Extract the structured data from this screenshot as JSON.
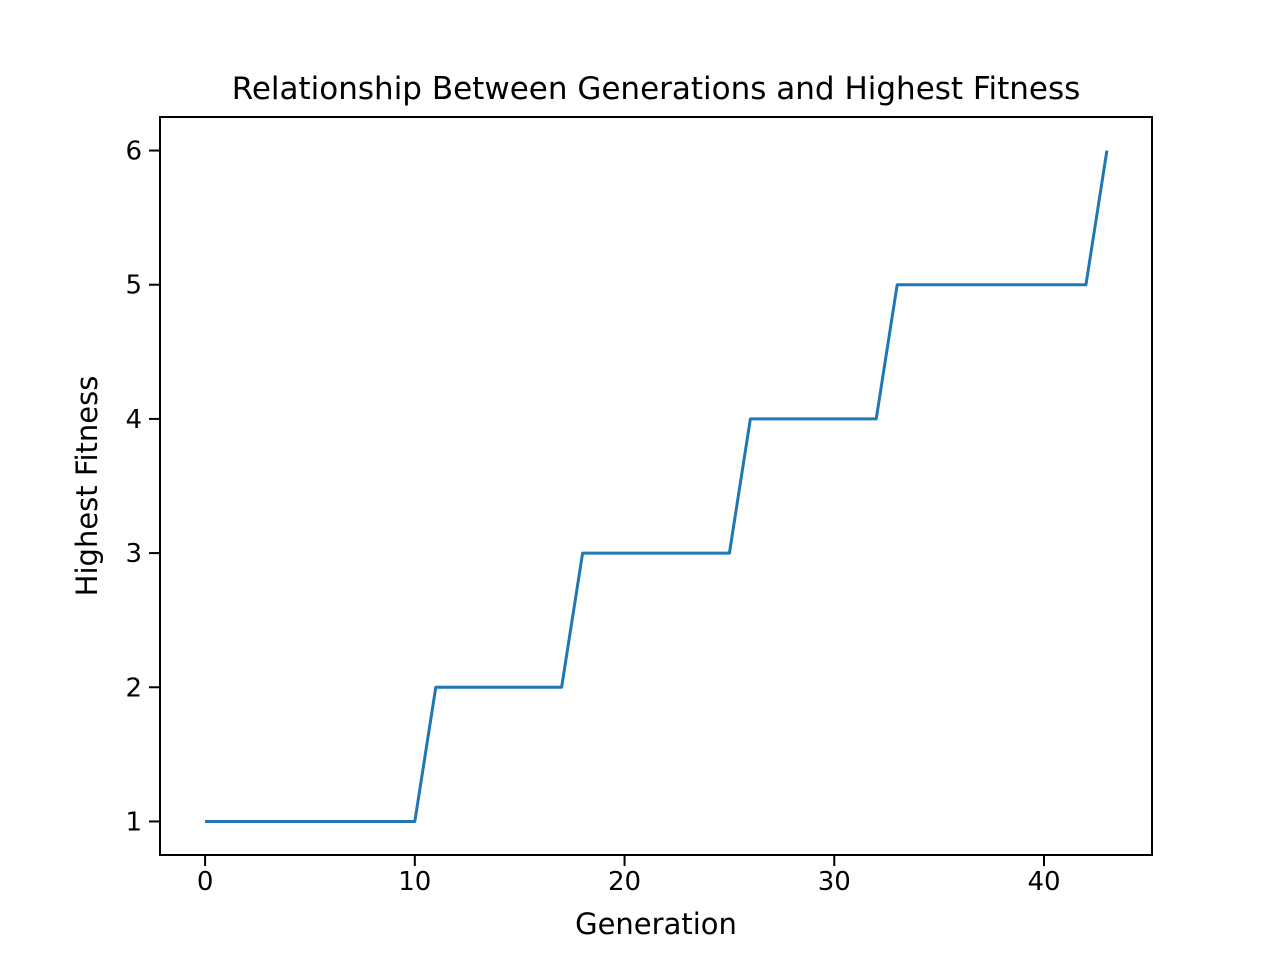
{
  "chart_data": {
    "type": "line",
    "title": "Relationship Between Generations and Highest Fitness",
    "xlabel": "Generation",
    "ylabel": "Highest Fitness",
    "x": [
      0,
      1,
      2,
      3,
      4,
      5,
      6,
      7,
      8,
      9,
      10,
      11,
      12,
      13,
      14,
      15,
      16,
      17,
      18,
      19,
      20,
      21,
      22,
      23,
      24,
      25,
      26,
      27,
      28,
      29,
      30,
      31,
      32,
      33,
      34,
      35,
      36,
      37,
      38,
      39,
      40,
      41,
      42,
      43
    ],
    "y": [
      1,
      1,
      1,
      1,
      1,
      1,
      1,
      1,
      1,
      1,
      1,
      2,
      2,
      2,
      2,
      2,
      2,
      2,
      3,
      3,
      3,
      3,
      3,
      3,
      3,
      3,
      4,
      4,
      4,
      4,
      4,
      4,
      4,
      5,
      5,
      5,
      5,
      5,
      5,
      5,
      5,
      5,
      5,
      6
    ],
    "series_name": "Highest Fitness",
    "xticks": [
      0,
      10,
      20,
      30,
      40
    ],
    "yticks": [
      1,
      2,
      3,
      4,
      5,
      6
    ],
    "xlim": [
      -2.15,
      45.15
    ],
    "ylim": [
      0.75,
      6.25
    ],
    "grid": false,
    "legend": null,
    "line_color": "#1f77b4",
    "line_width": 3,
    "spine_color": "#000000",
    "background_color": "#ffffff"
  }
}
